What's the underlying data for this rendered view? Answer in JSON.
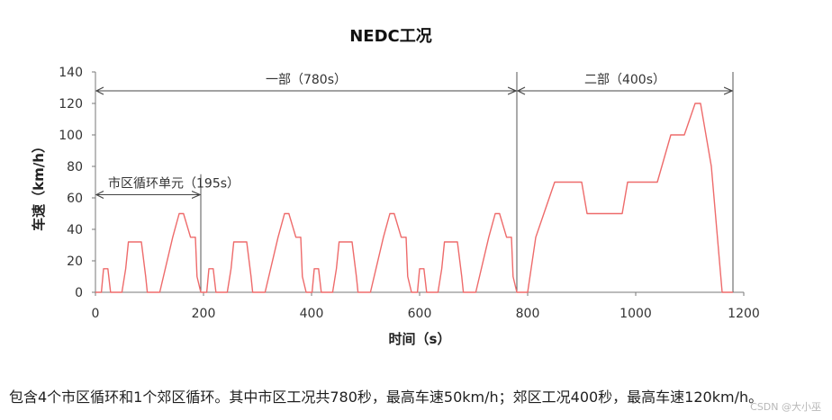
{
  "chart_data": {
    "type": "line",
    "title": "NEDC工况",
    "xlabel": "时间（s）",
    "ylabel": "车速（km/h）",
    "xlim": [
      0,
      1200
    ],
    "ylim": [
      0,
      140
    ],
    "x_ticks": [
      0,
      200,
      400,
      600,
      800,
      1000,
      1200
    ],
    "y_ticks": [
      0,
      20,
      40,
      60,
      80,
      100,
      120,
      140
    ],
    "grid": false,
    "series_color": "#ee6b6b",
    "series": [
      {
        "x": [
          0,
          11,
          15,
          23,
          28,
          44,
          49,
          56,
          61,
          85,
          93,
          96,
          117,
          119,
          143,
          155,
          163,
          176,
          178,
          185,
          188,
          195
        ],
        "y": [
          0,
          0,
          15,
          15,
          0,
          0,
          0,
          15,
          32,
          32,
          10,
          0,
          0,
          0,
          35,
          50,
          50,
          35,
          35,
          35,
          10,
          0
        ]
      }
    ],
    "annotations": [
      {
        "text": "一部（780s）",
        "x_start": 0,
        "x_end": 780,
        "y": 128
      },
      {
        "text": "二部（400s）",
        "x_start": 780,
        "x_end": 1180,
        "y": 128
      },
      {
        "text": "市区循环单元（195s）",
        "x_start": 0,
        "x_end": 195,
        "y": 62
      }
    ],
    "extra_urban": {
      "x": [
        780,
        800,
        815,
        830,
        850,
        900,
        910,
        975,
        985,
        1020,
        1040,
        1065,
        1090,
        1110,
        1120,
        1140,
        1160,
        1180
      ],
      "y": [
        0,
        0,
        35,
        50,
        70,
        70,
        50,
        50,
        70,
        70,
        70,
        100,
        100,
        120,
        120,
        80,
        0,
        0
      ]
    }
  },
  "caption": "包含4个市区循环和1个郊区循环。其中市区工况共780秒，最高车速50km/h；郊区工况400秒，最高车速120km/h。",
  "watermark": "CSDN @大小巫"
}
